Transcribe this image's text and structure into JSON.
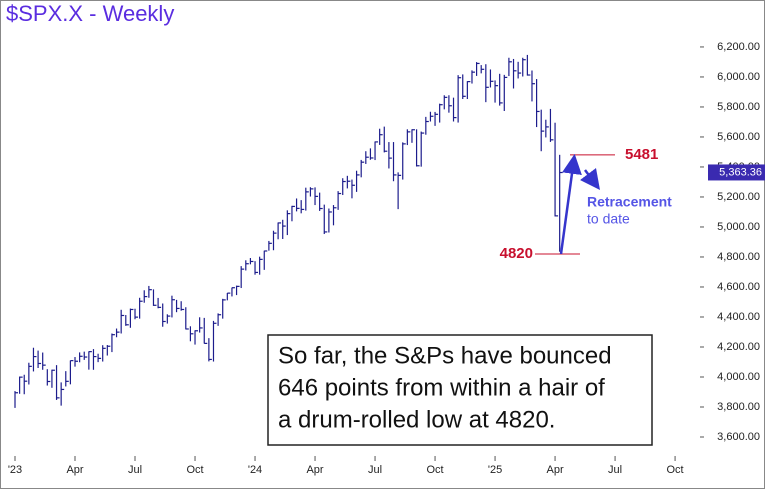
{
  "chart_data": {
    "type": "ohlc",
    "title": "$SPX.X - Weekly",
    "color": "#1c1c8c",
    "x": [
      0,
      1,
      2,
      3,
      4,
      5,
      6,
      7,
      8,
      9,
      10,
      11,
      12,
      13,
      14,
      15,
      16,
      17,
      18,
      19,
      20,
      21,
      22,
      23,
      24,
      25,
      26,
      27,
      28,
      29,
      30,
      31,
      32,
      33,
      34,
      35,
      36,
      37,
      38,
      39,
      40,
      41,
      42,
      43,
      44,
      45,
      46,
      47,
      48,
      49,
      50,
      51,
      52,
      53,
      54,
      55,
      56,
      57,
      58,
      59,
      60,
      61,
      62,
      63,
      64,
      65,
      66,
      67,
      68,
      69,
      70,
      71,
      72,
      73,
      74,
      75,
      76,
      77,
      78,
      79,
      80,
      81,
      82,
      83,
      84,
      85,
      86,
      87,
      88,
      89,
      90,
      91,
      92,
      93,
      94,
      95,
      96,
      97,
      98,
      99,
      100,
      101,
      102,
      103,
      104,
      105,
      106,
      107,
      108,
      109,
      110,
      111,
      112,
      113,
      114,
      115,
      116,
      117,
      118
    ],
    "high": [
      3906,
      4003,
      4015,
      4095,
      4195,
      4176,
      4163,
      4052,
      4049,
      4079,
      3964,
      4039,
      4110,
      4133,
      4164,
      4169,
      4171,
      4186,
      4155,
      4212,
      4213,
      4290,
      4323,
      4448,
      4413,
      4456,
      4455,
      4528,
      4578,
      4607,
      4584,
      4527,
      4490,
      4418,
      4542,
      4514,
      4505,
      4465,
      4338,
      4311,
      4398,
      4394,
      4259,
      4374,
      4424,
      4521,
      4560,
      4596,
      4609,
      4739,
      4778,
      4793,
      4772,
      4802,
      4842,
      4907,
      4975,
      5030,
      5048,
      5111,
      5141,
      5190,
      5179,
      5262,
      5265,
      5264,
      5229,
      5149,
      5123,
      5146,
      5239,
      5325,
      5341,
      5316,
      5375,
      5447,
      5505,
      5524,
      5570,
      5655,
      5669,
      5566,
      5566,
      5364,
      5564,
      5651,
      5651,
      5651,
      5636,
      5734,
      5768,
      5767,
      5822,
      5878,
      5878,
      5862,
      6012,
      6017,
      5972,
      6044,
      6099,
      6079,
      6085,
      6050,
      5977,
      6021,
      6014,
      6128,
      6120,
      6101,
      6128,
      6147,
      6043,
      5986,
      5782,
      5715,
      5787,
      5695,
      5481
    ],
    "low": [
      3794,
      3888,
      3885,
      3950,
      4037,
      4060,
      4048,
      3943,
      3928,
      3847,
      3809,
      3937,
      3951,
      4069,
      4098,
      4114,
      4049,
      4048,
      4099,
      4103,
      4143,
      4166,
      4265,
      4290,
      4341,
      4328,
      4385,
      4389,
      4495,
      4528,
      4474,
      4458,
      4335,
      4356,
      4397,
      4432,
      4442,
      4317,
      4238,
      4216,
      4296,
      4223,
      4104,
      4103,
      4341,
      4389,
      4511,
      4537,
      4546,
      4593,
      4710,
      4751,
      4682,
      4682,
      4714,
      4842,
      4845,
      4918,
      4920,
      4946,
      5038,
      5104,
      5091,
      5109,
      5203,
      5146,
      5107,
      4953,
      4963,
      5011,
      5114,
      5213,
      5257,
      5191,
      5234,
      5331,
      5420,
      5448,
      5446,
      5547,
      5497,
      5390,
      5305,
      5119,
      5316,
      5546,
      5561,
      5403,
      5402,
      5615,
      5703,
      5674,
      5696,
      5784,
      5762,
      5703,
      5696,
      5853,
      5853,
      5956,
      6007,
      6024,
      5832,
      5930,
      5829,
      5809,
      5773,
      6006,
      5923,
      5990,
      6003,
      6009,
      5837,
      5666,
      5505,
      5597,
      5567,
      5070,
      4835
    ],
    "close": [
      3895,
      3999,
      3972,
      4071,
      4136,
      4090,
      4079,
      3970,
      4045,
      3861,
      3917,
      3971,
      4109,
      4105,
      4138,
      4133,
      4169,
      4136,
      4124,
      4191,
      4205,
      4282,
      4299,
      4410,
      4348,
      4450,
      4399,
      4505,
      4536,
      4582,
      4478,
      4464,
      4370,
      4406,
      4515,
      4457,
      4450,
      4320,
      4288,
      4308,
      4327,
      4224,
      4117,
      4358,
      4415,
      4514,
      4559,
      4595,
      4604,
      4719,
      4755,
      4770,
      4697,
      4784,
      4840,
      4891,
      4959,
      5027,
      5006,
      5089,
      5137,
      5124,
      5117,
      5234,
      5254,
      5204,
      5123,
      4967,
      5100,
      5128,
      5223,
      5303,
      5305,
      5278,
      5347,
      5432,
      5465,
      5460,
      5567,
      5615,
      5505,
      5459,
      5347,
      5344,
      5554,
      5634,
      5648,
      5408,
      5626,
      5703,
      5738,
      5751,
      5815,
      5864,
      5808,
      5729,
      5995,
      5871,
      5969,
      6032,
      6090,
      6051,
      5931,
      5971,
      5942,
      5827,
      5997,
      6101,
      6041,
      6026,
      6115,
      6013,
      5955,
      5770,
      5639,
      5667,
      5581,
      5074,
      5363
    ],
    "xlim": [
      -3.25,
      148.4
    ],
    "xticks": [
      {
        "value": 0,
        "label": "'23"
      },
      {
        "value": 13,
        "label": "Apr"
      },
      {
        "value": 26,
        "label": "Jul"
      },
      {
        "value": 39,
        "label": "Oct"
      },
      {
        "value": 52,
        "label": "'24"
      },
      {
        "value": 65,
        "label": "Apr"
      },
      {
        "value": 78,
        "label": "Jul"
      },
      {
        "value": 91,
        "label": "Oct"
      },
      {
        "value": 104,
        "label": "'25"
      },
      {
        "value": 117,
        "label": "Apr"
      },
      {
        "value": 130,
        "label": "Jul"
      },
      {
        "value": 143,
        "label": "Oct"
      }
    ],
    "ylim": [
      3480,
      6513
    ],
    "yticks": [
      {
        "value": 3600,
        "label": "3,600.00"
      },
      {
        "value": 3800,
        "label": "3,800.00"
      },
      {
        "value": 4000,
        "label": "4,000.00"
      },
      {
        "value": 4200,
        "label": "4,200.00"
      },
      {
        "value": 4400,
        "label": "4,400.00"
      },
      {
        "value": 4600,
        "label": "4,600.00"
      },
      {
        "value": 4800,
        "label": "4,800.00"
      },
      {
        "value": 5000,
        "label": "5,000.00"
      },
      {
        "value": 5200,
        "label": "5,200.00"
      },
      {
        "value": 5400,
        "label": "5,400.00"
      },
      {
        "value": 5600,
        "label": "5,600.00"
      },
      {
        "value": 5800,
        "label": "5,800.00"
      },
      {
        "value": 6000,
        "label": "6,000.00"
      },
      {
        "value": 6200,
        "label": "6,200.00"
      }
    ],
    "last_price": {
      "value": 5363.36,
      "label": "5,363.36"
    },
    "levels": [
      5481,
      4820
    ],
    "arrow_label": [
      "Retracement",
      "to date"
    ],
    "note": [
      "So far, the S&Ps have bounced",
      "646 points from within a hair of",
      "a drum-rolled low at 4820."
    ]
  }
}
